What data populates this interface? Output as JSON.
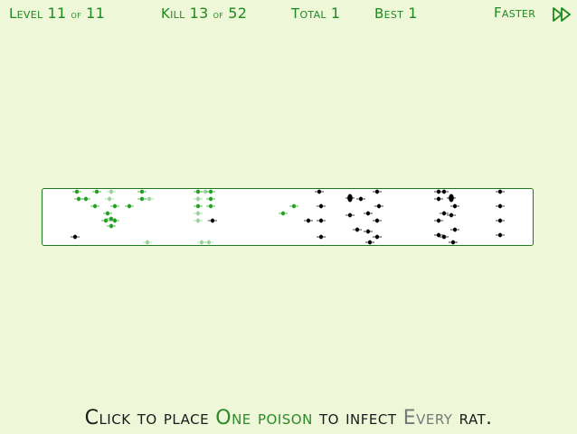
{
  "hud": {
    "level_label": "Level",
    "level_value": "11",
    "level_of": "of",
    "level_total": "11",
    "kill_label": "Kill",
    "kill_value": "13",
    "kill_of": "of",
    "kill_total": "52",
    "total_label": "Total",
    "total_value": "1",
    "best_label": "Best",
    "best_value": "1",
    "faster_label": "Faster"
  },
  "instruction": {
    "w1": "Click",
    "w2": "to place",
    "w3": "One",
    "w4": "poison",
    "w5": "to infect",
    "w6": "Every",
    "w7": "rat."
  },
  "colors": {
    "background": "#eff7d9",
    "hud_text": "#1e8a1e",
    "infected_rat": "#22a022",
    "healthy_rat": "#000000",
    "arena_border": "#1e7a1e"
  },
  "icons": {
    "faster": "fast-forward-icon"
  }
}
